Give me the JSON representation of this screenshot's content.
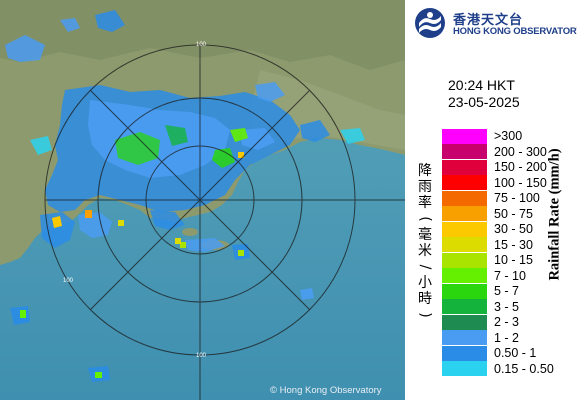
{
  "observatory": {
    "name_zh": "香港天文台",
    "name_en": "HONG KONG OBSERVATORY"
  },
  "timestamp": {
    "time": "20:24 HKT",
    "date": "23-05-2025"
  },
  "legend": {
    "title_zh": "降雨率(毫米/小時)",
    "title_en": "Rainfall Rate (mm/h)",
    "items": [
      {
        "label": ">300",
        "color": "#ff00ff"
      },
      {
        "label": "200 - 300",
        "color": "#c8006e"
      },
      {
        "label": "150 - 200",
        "color": "#e0003c"
      },
      {
        "label": "100 - 150",
        "color": "#ff0000"
      },
      {
        "label": "75 - 100",
        "color": "#f56a00"
      },
      {
        "label": "50 - 75",
        "color": "#f7a000"
      },
      {
        "label": "30 - 50",
        "color": "#fcc800"
      },
      {
        "label": "15 - 30",
        "color": "#dcdc00"
      },
      {
        "label": "10 - 15",
        "color": "#a8e400"
      },
      {
        "label": "7 - 10",
        "color": "#64f000"
      },
      {
        "label": "5 - 7",
        "color": "#2ad60e"
      },
      {
        "label": "3 - 5",
        "color": "#14b43c"
      },
      {
        "label": "2 - 3",
        "color": "#1e8c50"
      },
      {
        "label": "1 - 2",
        "color": "#4a9cf2"
      },
      {
        "label": "0.50 - 1",
        "color": "#2a8ce6"
      },
      {
        "label": "0.15 - 0.50",
        "color": "#2ad2f0"
      }
    ]
  },
  "range_rings": [
    {
      "label": "100"
    },
    {
      "label": "100"
    },
    {
      "label": "100"
    }
  ],
  "copyright": "© Hong Kong Observatory"
}
